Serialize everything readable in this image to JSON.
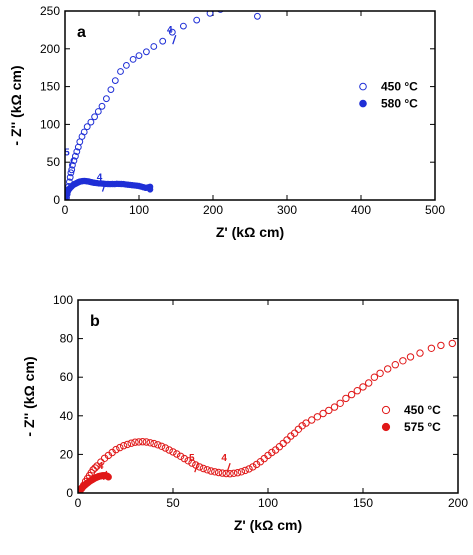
{
  "colors": {
    "blue": "#1f2fd6",
    "red": "#e01818",
    "axis": "#000000"
  },
  "chart_data": [
    {
      "type": "scatter",
      "panel_label": "a",
      "xlabel": "Z' (kΩ cm)",
      "ylabel": "- Z'' (kΩ cm)",
      "xlim": [
        0,
        500
      ],
      "ylim": [
        0,
        250
      ],
      "xticks": [
        0,
        100,
        200,
        300,
        400,
        500
      ],
      "yticks": [
        0,
        50,
        100,
        150,
        200,
        250
      ],
      "legend_position": "right-middle",
      "series": [
        {
          "name": "450 °C",
          "marker": "open-circle",
          "color": "#1f2fd6",
          "x": [
            2,
            3,
            4,
            5,
            6,
            7,
            8,
            9,
            10,
            12,
            14,
            16,
            18,
            20,
            23,
            26,
            30,
            35,
            40,
            45,
            50,
            56,
            62,
            68,
            75,
            83,
            92,
            100,
            110,
            120,
            132,
            145,
            160,
            178,
            196,
            210,
            228,
            245,
            260
          ],
          "y": [
            3,
            8,
            12,
            18,
            24,
            30,
            36,
            40,
            46,
            52,
            58,
            64,
            70,
            77,
            84,
            90,
            97,
            103,
            110,
            117,
            124,
            134,
            146,
            158,
            170,
            178,
            186,
            191,
            196,
            203,
            210,
            222,
            230,
            238,
            247,
            252,
            258,
            257,
            243
          ]
        },
        {
          "name": "580 °C",
          "marker": "filled-circle",
          "color": "#1f2fd6",
          "x": [
            1,
            2,
            3,
            4,
            5,
            6,
            7,
            8,
            9,
            10,
            11,
            12,
            13,
            14,
            15,
            16,
            17,
            18,
            19,
            20,
            22,
            24,
            26,
            28,
            30,
            32,
            34,
            36,
            38,
            40,
            43,
            46,
            49,
            52,
            55,
            58,
            61,
            64,
            67,
            70,
            73,
            76,
            79,
            82,
            85,
            88,
            91,
            94,
            97,
            100,
            103,
            106,
            109,
            112,
            115,
            115
          ],
          "y": [
            1,
            6,
            10,
            12.5,
            14,
            15,
            16,
            17,
            18,
            19,
            20,
            20.5,
            21,
            21.5,
            22,
            22.5,
            23,
            23.5,
            24,
            24.3,
            24.7,
            25,
            25.2,
            25,
            24.8,
            24.5,
            24,
            23.5,
            23,
            22.7,
            22.3,
            22,
            21.8,
            21.5,
            21.3,
            21.2,
            21,
            21.2,
            21,
            21.4,
            21.3,
            21.1,
            21,
            20.6,
            20.3,
            20,
            19.6,
            19.3,
            18.9,
            18.5,
            17.7,
            16.9,
            16.2,
            16.6,
            17.5,
            14
          ]
        }
      ],
      "annotations": [
        {
          "text": "4",
          "x": 147,
          "y": 222,
          "color": "#1f2fd6"
        },
        {
          "text": "5",
          "x": 8,
          "y": 60,
          "color": "#1f2fd6"
        },
        {
          "text": "4",
          "x": 52,
          "y": 27,
          "color": "#1f2fd6"
        }
      ]
    },
    {
      "type": "scatter",
      "panel_label": "b",
      "xlabel": "Z' (kΩ cm)",
      "ylabel": "- Z'' (kΩ cm)",
      "xlim": [
        0,
        200
      ],
      "ylim": [
        0,
        100
      ],
      "xticks": [
        0,
        50,
        100,
        150,
        200
      ],
      "yticks": [
        0,
        20,
        40,
        60,
        80,
        100
      ],
      "legend_position": "right-middle",
      "series": [
        {
          "name": "450 °C",
          "marker": "open-circle",
          "color": "#e01818",
          "x": [
            1,
            2,
            3,
            4,
            5,
            6,
            7,
            8,
            9,
            10,
            12,
            14,
            16,
            18,
            20,
            22,
            24,
            26,
            28,
            30,
            32,
            34,
            36,
            38,
            40,
            42,
            44,
            46,
            48,
            50,
            52,
            54,
            56,
            58,
            60,
            62,
            64,
            66,
            68,
            70,
            72,
            74,
            76,
            78,
            80,
            82,
            84,
            86,
            88,
            90,
            92,
            94,
            96,
            98,
            100,
            102,
            104,
            106,
            108,
            110,
            112,
            114,
            116,
            118,
            120,
            123,
            126,
            129,
            132,
            135,
            138,
            141,
            144,
            147,
            150,
            153,
            156,
            159,
            163,
            167,
            171,
            175,
            180,
            186,
            191,
            197
          ],
          "y": [
            1,
            2.5,
            4,
            6,
            7.5,
            9,
            10.5,
            12,
            13,
            14,
            16,
            18,
            19.5,
            21,
            22.5,
            23.5,
            24.5,
            25.2,
            25.8,
            26.3,
            26.5,
            26.6,
            26.4,
            26,
            25.6,
            25,
            24.2,
            23.3,
            22.3,
            21.3,
            20.2,
            19,
            17.8,
            16.7,
            15.5,
            14.5,
            13.5,
            12.7,
            12,
            11.4,
            11,
            10.6,
            10.3,
            10.1,
            10,
            10.2,
            10.5,
            11,
            11.7,
            12.5,
            13.5,
            14.8,
            16.2,
            17.8,
            19.5,
            21,
            22.3,
            24,
            25.7,
            27.5,
            29.5,
            31,
            33,
            34.8,
            36.2,
            37.8,
            39.5,
            41.2,
            42.8,
            44.5,
            46.5,
            49,
            51,
            53,
            55,
            57,
            60,
            62,
            64.3,
            66.5,
            68.5,
            70.5,
            72.5,
            75,
            76.5,
            77.5
          ]
        },
        {
          "name": "575 °C",
          "marker": "filled-circle",
          "color": "#e01818",
          "x": [
            0.5,
            1,
            1.5,
            2,
            2.5,
            3,
            3.5,
            4,
            4.5,
            5,
            5.5,
            6,
            6.5,
            7,
            7.5,
            8,
            8.5,
            9,
            9.5,
            10,
            10.5,
            11,
            11.5,
            12,
            12.5,
            13,
            13.5,
            14,
            14.5,
            15,
            15.5,
            16
          ],
          "y": [
            0.5,
            1.3,
            2,
            2.6,
            3.1,
            3.6,
            4,
            4.4,
            4.8,
            5.2,
            5.6,
            6,
            6.3,
            6.6,
            6.9,
            7.2,
            7.5,
            7.8,
            8,
            8.2,
            8.4,
            8.6,
            8.7,
            8.8,
            8.9,
            9,
            9,
            9,
            9,
            8.9,
            8.7,
            8.3
          ]
        }
      ],
      "annotations": [
        {
          "text": "5",
          "x": 62,
          "y": 17,
          "color": "#e01818"
        },
        {
          "text": "4",
          "x": 79,
          "y": 17,
          "color": "#e01818"
        },
        {
          "text": "4",
          "x": 14,
          "y": 13,
          "color": "#e01818"
        }
      ]
    }
  ]
}
